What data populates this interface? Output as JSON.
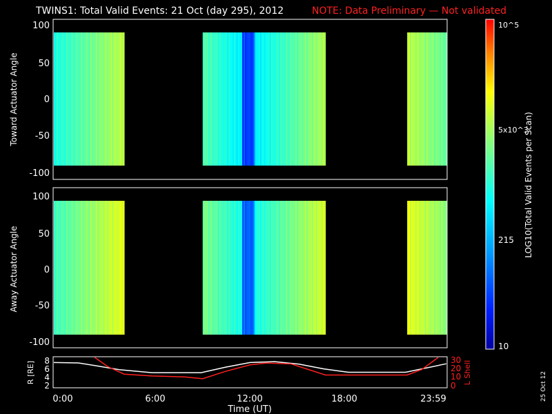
{
  "header": {
    "title": "TWINS1: Total Valid Events: 21 Oct (day 295), 2012",
    "note": "NOTE: Data Preliminary — Not validated"
  },
  "side_date": "25 Oct 12",
  "chart_data": [
    {
      "type": "heatmap",
      "name": "toward",
      "ylabel": "Toward Actuator Angle",
      "ylim": [
        -110,
        110
      ],
      "yticks": [
        "100",
        "50",
        "0",
        "-50",
        "-100"
      ],
      "xlim_hours": [
        0,
        24
      ],
      "data_blocks_hours": [
        [
          0,
          4.3
        ],
        [
          9.1,
          16.6
        ],
        [
          21.6,
          24
        ]
      ],
      "color_scale": "log10 events per scan, 10 to 1e5"
    },
    {
      "type": "heatmap",
      "name": "away",
      "ylabel": "Away Actuator Angle",
      "ylim": [
        -110,
        110
      ],
      "yticks": [
        "100",
        "50",
        "0",
        "-50",
        "-100"
      ],
      "xlim_hours": [
        0,
        24
      ],
      "data_blocks_hours": [
        [
          0,
          4.3
        ],
        [
          9.1,
          16.6
        ],
        [
          21.6,
          24
        ]
      ],
      "color_scale": "log10 events per scan, 10 to 1e5"
    },
    {
      "type": "line",
      "name": "orbit",
      "ylabel_left": "R [RE]",
      "ylabel_right": "L Shell",
      "left_ticks": [
        "8",
        "6",
        "4",
        "2"
      ],
      "right_ticks": [
        "30",
        "20",
        "10",
        "0"
      ],
      "ylim_left": [
        1.5,
        8.5
      ],
      "ylim_right": [
        0,
        32
      ],
      "xlabel": "Time (UT)",
      "xticks": [
        "0:00",
        "6:00",
        "12:00",
        "18:00",
        "23:59"
      ],
      "series": [
        {
          "color": "#ffffff",
          "x": [
            0,
            1.5,
            2.5,
            4,
            6,
            9,
            10.5,
            12,
            13.5,
            15,
            16.5,
            18,
            21.5,
            22.5,
            23.99
          ],
          "y": [
            7.3,
            7.2,
            6.6,
            5.6,
            4.9,
            4.9,
            6.2,
            7.3,
            7.5,
            6.9,
            5.8,
            5.0,
            5.0,
            5.8,
            7.0
          ]
        },
        {
          "color": "#ff2020",
          "x": [
            2.5,
            3.3,
            4.3,
            6,
            8,
            9.1,
            10.5,
            12,
            13,
            14.5,
            16.6,
            18,
            21.6,
            22.5,
            23.5
          ],
          "y": [
            32,
            22,
            14,
            12,
            11,
            9,
            17,
            24,
            26,
            25,
            13,
            13,
            13,
            19,
            32
          ]
        }
      ]
    }
  ],
  "colorbar": {
    "label": "LOG10(Total Valid Events per Scan)",
    "labels": [
      "10",
      "215",
      "5x10^3",
      "10^5"
    ]
  }
}
